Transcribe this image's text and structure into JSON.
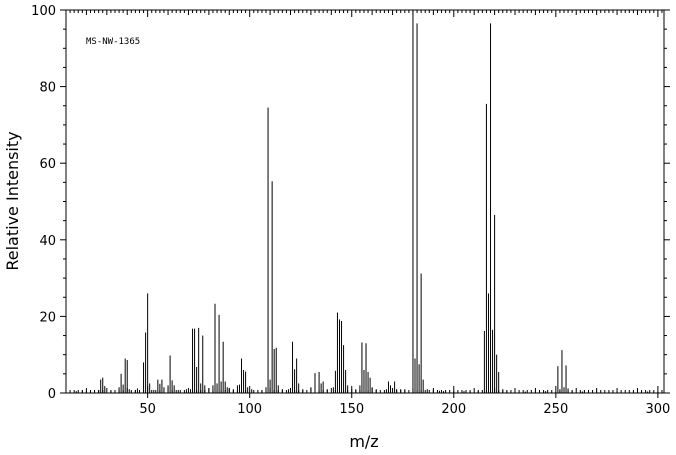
{
  "chart_data": {
    "type": "bar",
    "title": "",
    "annotation": "MS-NW-1365",
    "xlabel": "m/z",
    "ylabel": "Relative Intensity",
    "xlim": [
      10,
      303
    ],
    "ylim": [
      0,
      100
    ],
    "x_ticks": [
      50,
      100,
      150,
      200,
      250,
      300
    ],
    "y_ticks": [
      0,
      20,
      40,
      60,
      80,
      100
    ],
    "grid": false,
    "series": [
      {
        "peaks": [
          [
            15,
            0.5
          ],
          [
            18,
            0.6
          ],
          [
            20,
            0.5
          ],
          [
            26,
            0.8
          ],
          [
            27,
            3.5
          ],
          [
            28,
            4.0
          ],
          [
            29,
            1.8
          ],
          [
            32,
            0.6
          ],
          [
            36,
            1.5
          ],
          [
            37,
            5.0
          ],
          [
            38,
            2.2
          ],
          [
            39,
            9.0
          ],
          [
            40,
            8.6
          ],
          [
            41,
            1.0
          ],
          [
            44,
            0.8
          ],
          [
            45,
            1.2
          ],
          [
            48,
            8.0
          ],
          [
            49,
            15.8
          ],
          [
            50,
            26.0
          ],
          [
            51,
            2.5
          ],
          [
            53,
            0.8
          ],
          [
            55,
            3.5
          ],
          [
            56,
            2.4
          ],
          [
            57,
            3.5
          ],
          [
            58,
            1.5
          ],
          [
            60,
            2.0
          ],
          [
            61,
            9.8
          ],
          [
            62,
            3.3
          ],
          [
            63,
            2.0
          ],
          [
            65,
            0.8
          ],
          [
            69,
            1.0
          ],
          [
            71,
            1.0
          ],
          [
            72,
            16.8
          ],
          [
            73,
            16.8
          ],
          [
            74,
            6.8
          ],
          [
            75,
            17.0
          ],
          [
            76,
            2.5
          ],
          [
            77,
            15.0
          ],
          [
            78,
            2.0
          ],
          [
            80,
            1.2
          ],
          [
            82,
            2.0
          ],
          [
            83,
            23.3
          ],
          [
            84,
            2.5
          ],
          [
            85,
            20.4
          ],
          [
            86,
            3.0
          ],
          [
            87,
            13.4
          ],
          [
            88,
            3.0
          ],
          [
            89,
            1.5
          ],
          [
            90,
            1.2
          ],
          [
            92,
            1.0
          ],
          [
            94,
            2.0
          ],
          [
            95,
            2.2
          ],
          [
            96,
            9.0
          ],
          [
            97,
            6.0
          ],
          [
            98,
            5.6
          ],
          [
            99,
            1.5
          ],
          [
            101,
            1.0
          ],
          [
            106,
            0.8
          ],
          [
            108,
            1.5
          ],
          [
            109,
            74.5
          ],
          [
            110,
            3.5
          ],
          [
            111,
            55.3
          ],
          [
            112,
            11.5
          ],
          [
            113,
            11.8
          ],
          [
            114,
            2.0
          ],
          [
            116,
            1.0
          ],
          [
            119,
            1.0
          ],
          [
            121,
            13.4
          ],
          [
            122,
            6.2
          ],
          [
            123,
            9.0
          ],
          [
            124,
            2.5
          ],
          [
            126,
            1.0
          ],
          [
            130,
            1.5
          ],
          [
            132,
            5.2
          ],
          [
            134,
            5.5
          ],
          [
            135,
            2.5
          ],
          [
            136,
            3.0
          ],
          [
            138,
            1.0
          ],
          [
            141,
            1.5
          ],
          [
            142,
            5.8
          ],
          [
            143,
            21.0
          ],
          [
            144,
            19.2
          ],
          [
            145,
            18.8
          ],
          [
            146,
            12.5
          ],
          [
            147,
            6.0
          ],
          [
            148,
            2.0
          ],
          [
            150,
            1.0
          ],
          [
            152,
            1.0
          ],
          [
            154,
            2.0
          ],
          [
            155,
            13.2
          ],
          [
            156,
            6.0
          ],
          [
            157,
            13.0
          ],
          [
            158,
            5.5
          ],
          [
            159,
            4.0
          ],
          [
            160,
            1.5
          ],
          [
            162,
            1.0
          ],
          [
            167,
            1.0
          ],
          [
            168,
            3.0
          ],
          [
            169,
            2.0
          ],
          [
            171,
            3.0
          ],
          [
            172,
            1.0
          ],
          [
            174,
            1.0
          ],
          [
            176,
            1.0
          ],
          [
            180,
            100.0
          ],
          [
            181,
            9.0
          ],
          [
            182,
            96.5
          ],
          [
            183,
            7.5
          ],
          [
            184,
            31.2
          ],
          [
            185,
            3.5
          ],
          [
            187,
            1.0
          ],
          [
            190,
            0.8
          ],
          [
            193,
            0.6
          ],
          [
            195,
            0.5
          ],
          [
            200,
            0.5
          ],
          [
            205,
            0.5
          ],
          [
            208,
            0.4
          ],
          [
            212,
            0.5
          ],
          [
            215,
            16.2
          ],
          [
            216,
            75.5
          ],
          [
            217,
            26.0
          ],
          [
            218,
            96.5
          ],
          [
            219,
            16.5
          ],
          [
            220,
            46.5
          ],
          [
            221,
            10.0
          ],
          [
            222,
            5.5
          ],
          [
            224,
            1.0
          ],
          [
            226,
            0.5
          ],
          [
            230,
            0.4
          ],
          [
            235,
            0.4
          ],
          [
            240,
            0.4
          ],
          [
            245,
            0.5
          ],
          [
            251,
            7.0
          ],
          [
            252,
            1.0
          ],
          [
            253,
            11.2
          ],
          [
            254,
            1.5
          ],
          [
            255,
            7.2
          ],
          [
            256,
            1.2
          ],
          [
            258,
            0.5
          ],
          [
            263,
            0.4
          ],
          [
            270,
            0.4
          ],
          [
            280,
            0.4
          ],
          [
            290,
            0.4
          ],
          [
            295,
            0.4
          ],
          [
            300,
            0.3
          ]
        ]
      }
    ]
  }
}
